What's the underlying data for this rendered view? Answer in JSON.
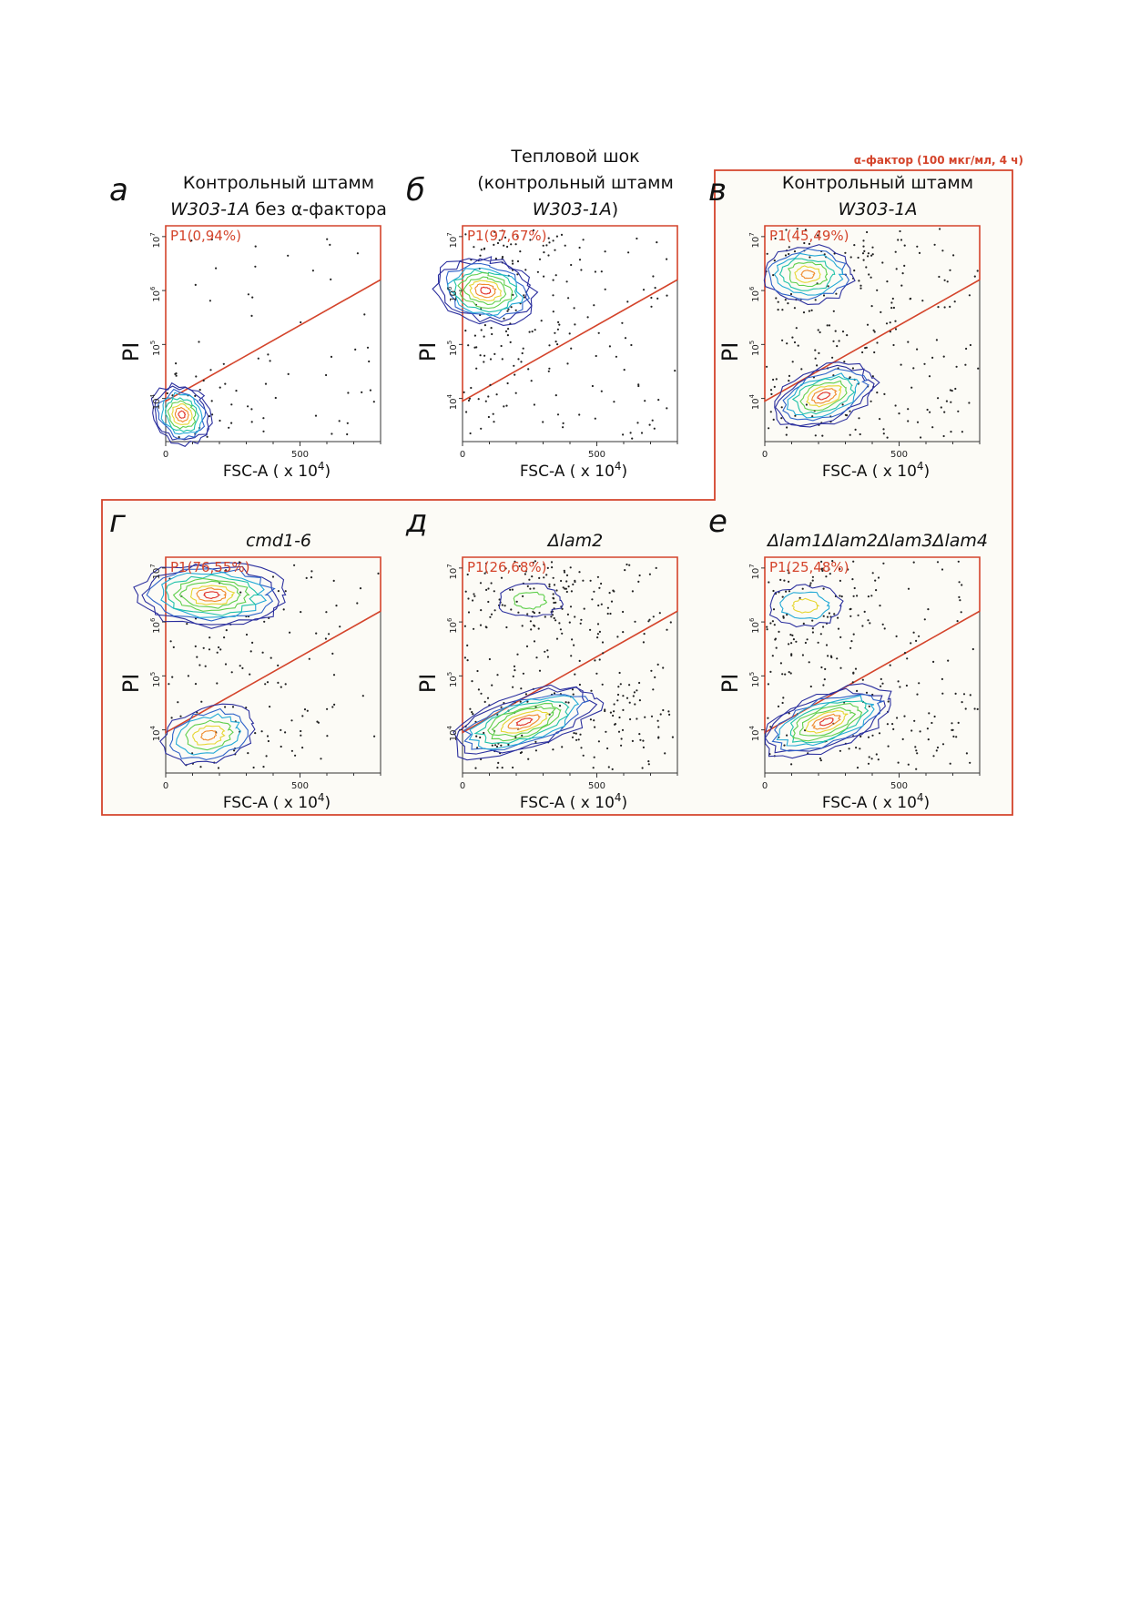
{
  "bracket_label": "α-фактор (100 мкг/мл, 4 ч)",
  "colors": {
    "gate": "#d4442b",
    "bracket": "#d4442b",
    "panel_bg": "#fcfbf6",
    "contour_scale": [
      "#2b2f9e",
      "#2f63c9",
      "#22a9d6",
      "#1fc2a8",
      "#5fcf4c",
      "#e6d633",
      "#f08a2c",
      "#e0312a"
    ]
  },
  "chart_data": [
    {
      "type": "scatter",
      "panel_letter": "а",
      "title_lines": [
        [
          {
            "t": "Контрольный штамм",
            "i": false
          }
        ],
        [
          {
            "t": "W303-1A",
            "i": true
          },
          {
            "t": " без α-фактора",
            "i": false
          }
        ]
      ],
      "gate_label": "P1(0,94%)",
      "gate_percent": 0.94,
      "xlabel": "FSC-A",
      "xlabel_unit": "( x 10",
      "xlabel_exp": "4",
      "xlabel_close": ")",
      "ylabel": "PI",
      "x_ticks": [
        "0",
        "500"
      ],
      "y_ticks": [
        "10",
        "10",
        "10",
        "10"
      ],
      "y_tick_exps": [
        "4",
        "5",
        "6",
        "7"
      ],
      "xlim": [
        0,
        800
      ],
      "ylim_log10": [
        3.2,
        7.2
      ],
      "gate_line": [
        [
          0,
          3.95
        ],
        [
          800,
          6.2
        ]
      ],
      "clusters": [
        {
          "x": 60,
          "y": 3.7,
          "sx": 60,
          "sy": 0.35,
          "levels": 9,
          "angle": 40
        }
      ],
      "dots": 120,
      "dot_seed": 11
    },
    {
      "type": "scatter",
      "panel_letter": "б",
      "title_lines": [
        [
          {
            "t": "Тепловой шок",
            "i": false
          }
        ],
        [
          {
            "t": "(контрольный штамм",
            "i": false
          }
        ],
        [
          {
            "t": "W303-1A",
            "i": true
          },
          {
            "t": ")",
            "i": false
          }
        ]
      ],
      "gate_label": "P1(97,67%)",
      "gate_percent": 97.67,
      "xlabel": "FSC-A",
      "xlabel_unit": "( x 10",
      "xlabel_exp": "4",
      "xlabel_close": ")",
      "ylabel": "PI",
      "x_ticks": [
        "0",
        "500"
      ],
      "y_ticks": [
        "10",
        "10",
        "10",
        "10"
      ],
      "y_tick_exps": [
        "4",
        "5",
        "6",
        "7"
      ],
      "xlim": [
        0,
        800
      ],
      "ylim_log10": [
        3.2,
        7.2
      ],
      "gate_line": [
        [
          0,
          3.95
        ],
        [
          800,
          6.2
        ]
      ],
      "clusters": [
        {
          "x": 85,
          "y": 6.0,
          "sx": 70,
          "sy": 0.55,
          "levels": 10,
          "angle": 80
        }
      ],
      "dots": 260,
      "dot_seed": 23
    },
    {
      "type": "scatter",
      "panel_letter": "в",
      "title_lines": [
        [
          {
            "t": "Контрольный штамм",
            "i": false
          }
        ],
        [
          {
            "t": "W303-1A",
            "i": true
          }
        ]
      ],
      "gate_label": "P1(45,49%)",
      "gate_percent": 45.49,
      "xlabel": "FSC-A",
      "xlabel_unit": "( x 10",
      "xlabel_exp": "4",
      "xlabel_close": ")",
      "ylabel": "PI",
      "x_ticks": [
        "0",
        "500"
      ],
      "y_ticks": [
        "10",
        "10",
        "10",
        "10"
      ],
      "y_tick_exps": [
        "4",
        "5",
        "6",
        "7"
      ],
      "xlim": [
        0,
        800
      ],
      "ylim_log10": [
        3.2,
        7.2
      ],
      "gate_line": [
        [
          0,
          3.95
        ],
        [
          800,
          6.2
        ]
      ],
      "clusters": [
        {
          "x": 160,
          "y": 6.3,
          "sx": 100,
          "sy": 0.3,
          "levels": 7,
          "angle": 0
        },
        {
          "x": 220,
          "y": 4.05,
          "sx": 120,
          "sy": 0.3,
          "levels": 9,
          "angle": 20
        }
      ],
      "dots": 280,
      "dot_seed": 37
    },
    {
      "type": "scatter",
      "panel_letter": "г",
      "title_lines": [
        [
          {
            "t": "cmd1-6",
            "i": true
          }
        ]
      ],
      "gate_label": "P1(76,55%)",
      "gate_percent": 76.55,
      "xlabel": "FSC-A",
      "xlabel_unit": "( x 10",
      "xlabel_exp": "4",
      "xlabel_close": ")",
      "ylabel": "PI",
      "x_ticks": [
        "0",
        "500"
      ],
      "y_ticks": [
        "10",
        "10",
        "10",
        "10"
      ],
      "y_tick_exps": [
        "4",
        "5",
        "6",
        "7"
      ],
      "xlim": [
        0,
        800
      ],
      "ylim_log10": [
        3.2,
        7.2
      ],
      "gate_line": [
        [
          0,
          3.95
        ],
        [
          800,
          6.2
        ]
      ],
      "clusters": [
        {
          "x": 170,
          "y": 6.5,
          "sx": 160,
          "sy": 0.35,
          "levels": 10,
          "angle": 0
        },
        {
          "x": 160,
          "y": 3.9,
          "sx": 100,
          "sy": 0.3,
          "levels": 6,
          "angle": 15
        }
      ],
      "dots": 180,
      "dot_seed": 51
    },
    {
      "type": "scatter",
      "panel_letter": "д",
      "title_lines": [
        [
          {
            "t": "Δlam2",
            "i": true
          }
        ]
      ],
      "gate_label": "P1(26,68%)",
      "gate_percent": 26.68,
      "xlabel": "FSC-A",
      "xlabel_unit": "( x 10",
      "xlabel_exp": "4",
      "xlabel_close": ")",
      "ylabel": "PI",
      "x_ticks": [
        "0",
        "500"
      ],
      "y_ticks": [
        "10",
        "10",
        "10",
        "10"
      ],
      "y_tick_exps": [
        "4",
        "5",
        "6",
        "7"
      ],
      "xlim": [
        0,
        800
      ],
      "ylim_log10": [
        3.2,
        7.2
      ],
      "gate_line": [
        [
          0,
          3.95
        ],
        [
          800,
          6.2
        ]
      ],
      "clusters": [
        {
          "x": 230,
          "y": 4.15,
          "sx": 170,
          "sy": 0.3,
          "levels": 10,
          "angle": 18
        },
        {
          "x": 250,
          "y": 6.4,
          "sx": 70,
          "sy": 0.18,
          "levels": 2,
          "angle": 0
        }
      ],
      "dots": 380,
      "dot_seed": 67
    },
    {
      "type": "scatter",
      "panel_letter": "е",
      "title_lines": [
        [
          {
            "t": "Δlam1Δlam2Δlam3Δlam4",
            "i": true
          }
        ]
      ],
      "gate_label": "P1(25,48%)",
      "gate_percent": 25.48,
      "xlabel": "FSC-A",
      "xlabel_unit": "( x 10",
      "xlabel_exp": "4",
      "xlabel_close": ")",
      "ylabel": "PI",
      "x_ticks": [
        "0",
        "500"
      ],
      "y_ticks": [
        "10",
        "10",
        "10",
        "10"
      ],
      "y_tick_exps": [
        "4",
        "5",
        "6",
        "7"
      ],
      "xlim": [
        0,
        800
      ],
      "ylim_log10": [
        3.2,
        7.2
      ],
      "gate_line": [
        [
          0,
          3.95
        ],
        [
          800,
          6.2
        ]
      ],
      "clusters": [
        {
          "x": 230,
          "y": 4.15,
          "sx": 150,
          "sy": 0.3,
          "levels": 10,
          "angle": 20
        },
        {
          "x": 150,
          "y": 6.3,
          "sx": 80,
          "sy": 0.22,
          "levels": 3,
          "angle": 0
        }
      ],
      "dots": 320,
      "dot_seed": 79
    }
  ]
}
